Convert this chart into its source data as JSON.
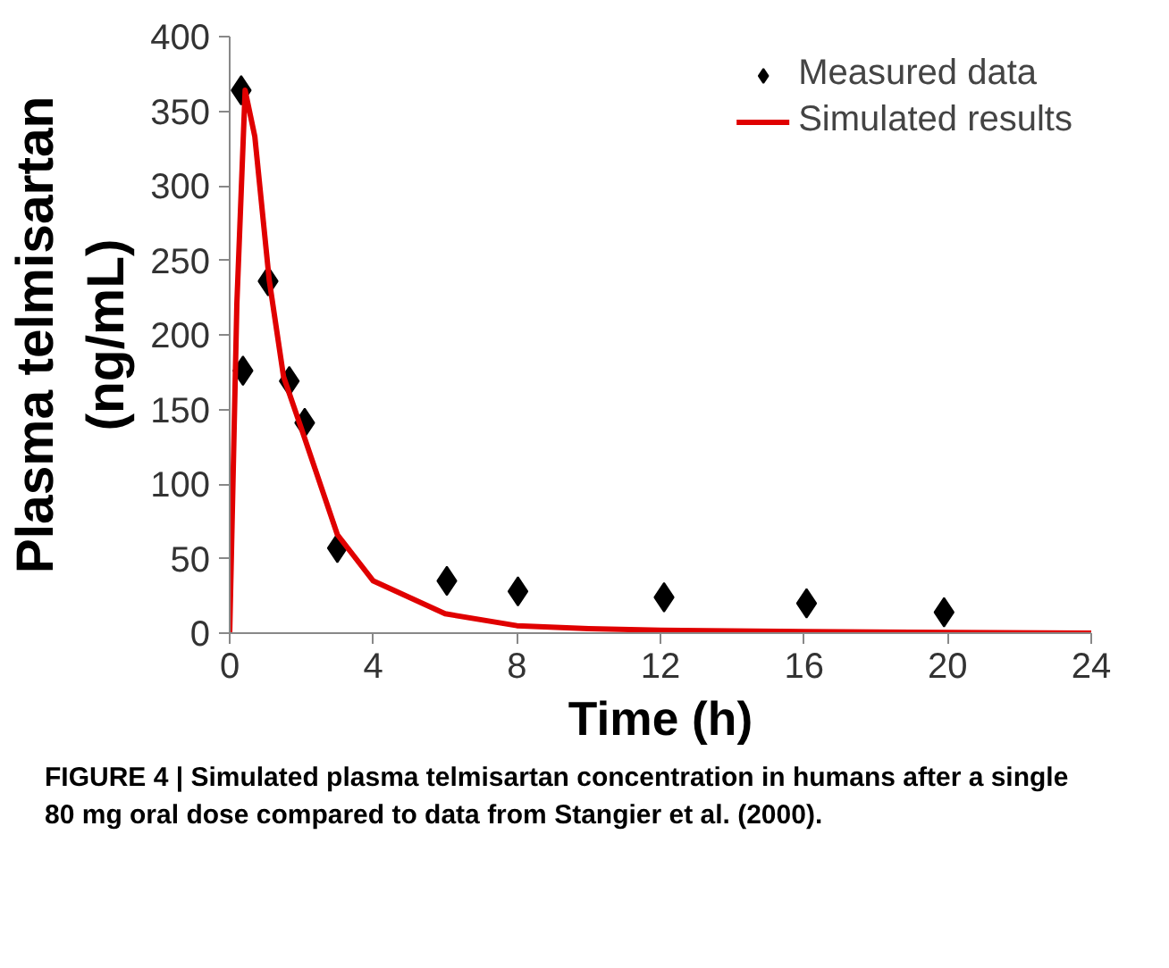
{
  "chart_data": {
    "type": "scatter",
    "xlabel": "Time (h)",
    "ylabel": "Plasma telmisartan\n(ng/mL)",
    "xlim": [
      0,
      24
    ],
    "xticks": [
      0,
      4,
      8,
      12,
      16,
      20,
      24
    ],
    "ylim": [
      0,
      400
    ],
    "yticks": [
      0,
      50,
      100,
      150,
      200,
      250,
      300,
      350,
      400
    ],
    "grid": false,
    "legend": "top right",
    "series": [
      {
        "name": "Measured data",
        "marker": "diamond",
        "color": "#000000",
        "x": [
          0.32,
          0.37,
          1.07,
          1.66,
          2.09,
          3.0,
          6.05,
          8.03,
          12.1,
          16.07,
          19.9
        ],
        "values": [
          364,
          176,
          236,
          169,
          141,
          57,
          35,
          28,
          24,
          20,
          14
        ]
      },
      {
        "name": "Simulated results",
        "type": "line",
        "marker": "none",
        "line_style": "solid",
        "color": "#e00000",
        "x": [
          0,
          0.2,
          0.43,
          0.7,
          1.1,
          1.5,
          2,
          3,
          4,
          6,
          8,
          10,
          12,
          16,
          24
        ],
        "values": [
          0,
          221,
          364,
          333,
          237,
          172,
          137,
          66,
          35,
          13,
          5,
          3,
          2,
          1,
          0
        ]
      }
    ],
    "annotations": [
      "FIGURE 4 | Simulated plasma telmisartan concentration in humans after a single 80 mg oral dose compared to data from Stangier et al. (2000)."
    ]
  }
}
